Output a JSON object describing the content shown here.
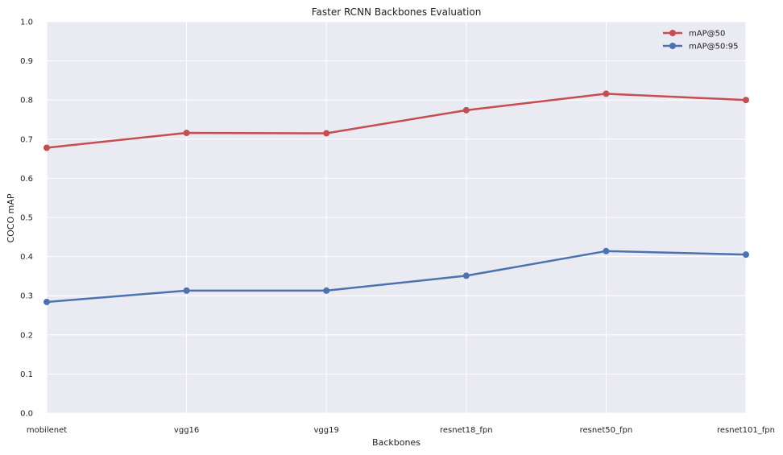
{
  "chart_data": {
    "type": "line",
    "title": "Faster RCNN Backbones Evaluation",
    "xlabel": "Backbones",
    "ylabel": "COCO mAP",
    "categories": [
      "mobilenet",
      "vgg16",
      "vgg19",
      "resnet18_fpn",
      "resnet50_fpn",
      "resnet101_fpn"
    ],
    "ylim": [
      0,
      1.0
    ],
    "yticks": [
      "0.0",
      "0.1",
      "0.2",
      "0.3",
      "0.4",
      "0.5",
      "0.6",
      "0.7",
      "0.8",
      "0.9",
      "1.0"
    ],
    "series": [
      {
        "name": "mAP@50",
        "color": "#c44e52",
        "values": [
          0.678,
          0.716,
          0.715,
          0.774,
          0.816,
          0.8
        ]
      },
      {
        "name": "mAP@50:95",
        "color": "#4c72b0",
        "values": [
          0.284,
          0.313,
          0.313,
          0.351,
          0.414,
          0.405
        ]
      }
    ],
    "grid": true,
    "legend_position": "top-right",
    "plot_background": "#eaeaf2",
    "grid_color": "#ffffff"
  }
}
